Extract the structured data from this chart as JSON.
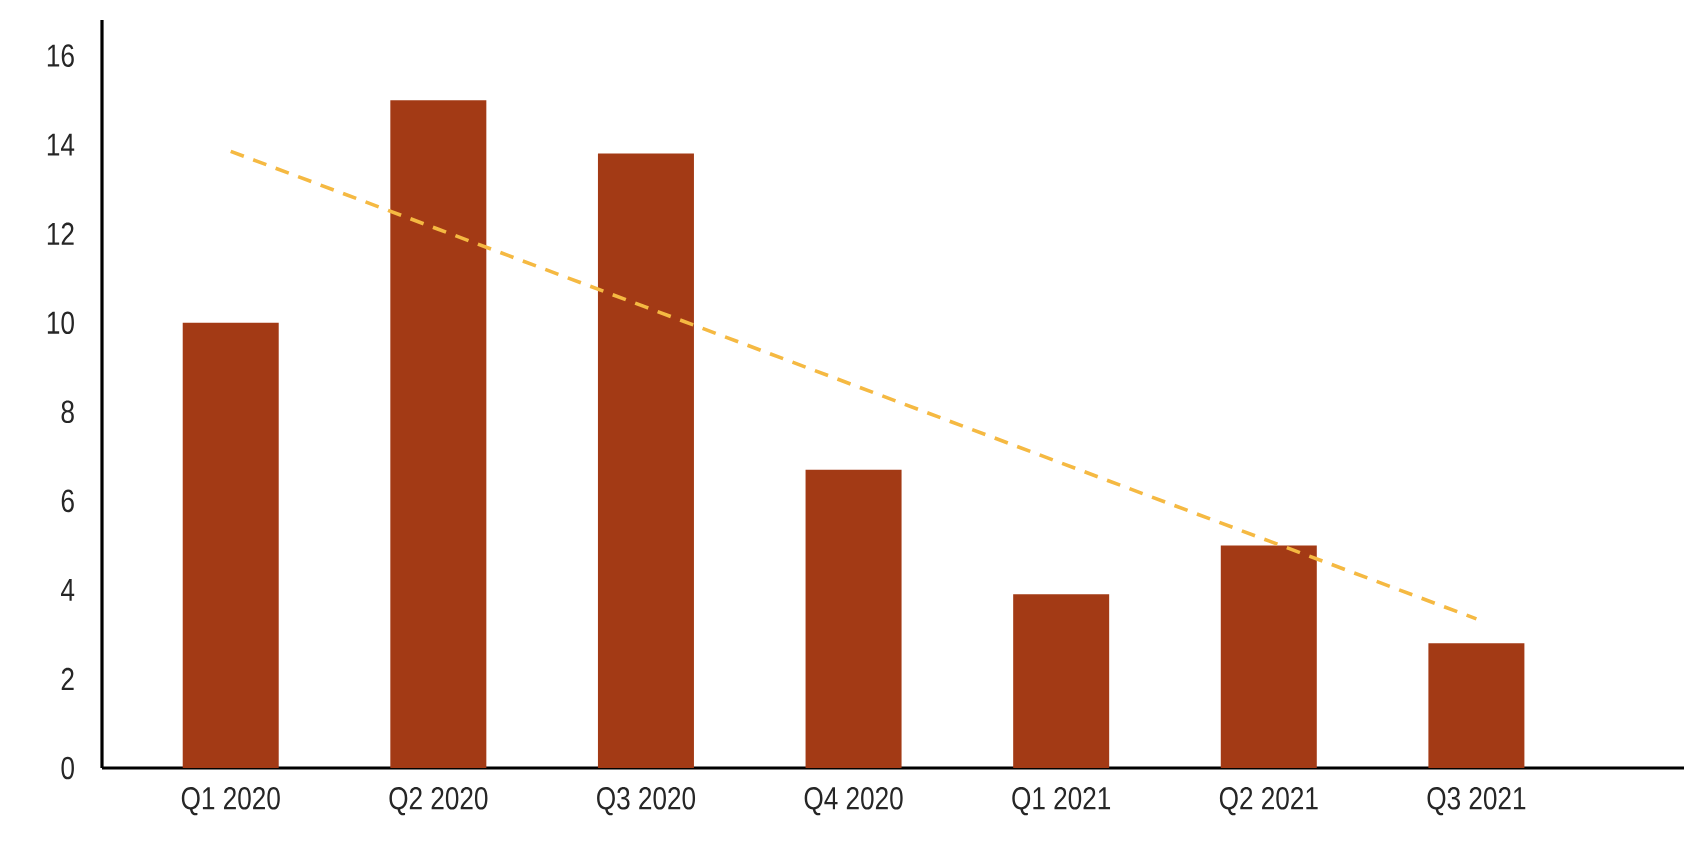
{
  "chart_data": {
    "type": "bar",
    "categories": [
      "Q1 2020",
      "Q2 2020",
      "Q3 2020",
      "Q4 2020",
      "Q1 2021",
      "Q2 2021",
      "Q3 2021"
    ],
    "series": [
      {
        "color": "#a33a15",
        "values": [
          10.0,
          15.0,
          13.8,
          6.7,
          3.9,
          5.0,
          2.8
        ]
      },
      {
        "type": "line",
        "color": "#f5b942",
        "line_style": "dashed",
        "values": [
          13.85,
          12.1,
          10.35,
          8.6,
          6.85,
          5.1,
          3.35
        ]
      }
    ],
    "ylim": [
      0,
      16.8
    ],
    "yticks": [
      0,
      2,
      4,
      6,
      8,
      10,
      12,
      14,
      16
    ]
  }
}
